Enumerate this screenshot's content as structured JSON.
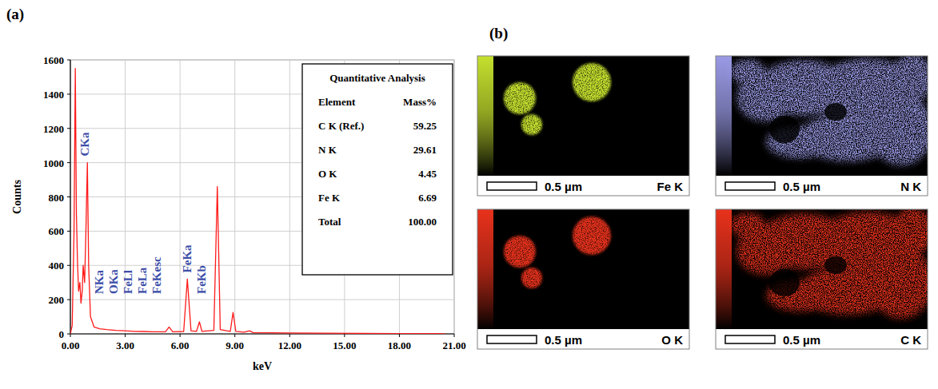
{
  "panel_labels": [
    "(a)",
    "(b)"
  ],
  "chart_data": {
    "type": "line",
    "x_label": "keV",
    "y_label": "Counts",
    "x": [
      0,
      0.1,
      0.2,
      0.27,
      0.33,
      0.39,
      0.45,
      0.52,
      0.58,
      0.65,
      0.7,
      0.78,
      0.85,
      0.93,
      1.0,
      1.1,
      1.3,
      1.6,
      2.0,
      2.5,
      3.0,
      3.5,
      4.0,
      4.5,
      5.2,
      5.4,
      5.6,
      6.2,
      6.4,
      6.6,
      6.9,
      7.06,
      7.2,
      7.85,
      8.04,
      8.2,
      8.75,
      8.9,
      9.05,
      9.5,
      9.8,
      10.0,
      11.0,
      12.0,
      14.0,
      16.0,
      18.0,
      20.0,
      20.5
    ],
    "values": [
      0,
      50,
      600,
      1550,
      700,
      420,
      250,
      300,
      180,
      250,
      400,
      300,
      600,
      1000,
      400,
      100,
      40,
      30,
      25,
      20,
      18,
      15,
      14,
      12,
      12,
      40,
      12,
      14,
      320,
      18,
      15,
      70,
      15,
      20,
      860,
      25,
      15,
      125,
      15,
      10,
      18,
      8,
      6,
      5,
      4,
      3,
      2,
      2,
      1
    ],
    "color": "#ff1a1a",
    "xlim": [
      0,
      21
    ],
    "xticks": [
      {
        "value": 0,
        "label": "0.00"
      },
      {
        "value": 3,
        "label": "3.00"
      },
      {
        "value": 6,
        "label": "6.00"
      },
      {
        "value": 9,
        "label": "9.00"
      },
      {
        "value": 12,
        "label": "12.00"
      },
      {
        "value": 15,
        "label": "15.00"
      },
      {
        "value": 18,
        "label": "18.00"
      },
      {
        "value": 21,
        "label": "21.00"
      }
    ],
    "ylim": [
      0,
      1600
    ],
    "yticks": [
      0,
      200,
      400,
      600,
      800,
      1000,
      1200,
      1400,
      1600
    ],
    "grid": true,
    "annotations": [
      {
        "text": "CKa",
        "x": 0.28
      },
      {
        "text": "NKa",
        "x": 0.39
      },
      {
        "text": "OKa",
        "x": 0.52
      },
      {
        "text": "FeLl",
        "x": 0.62
      },
      {
        "text": "FeLa",
        "x": 0.7
      },
      {
        "text": "FeKesc",
        "x": 4.6
      },
      {
        "text": "FeKa",
        "x": 6.4
      },
      {
        "text": "FeKb",
        "x": 7.06
      }
    ]
  },
  "table": {
    "title": "Quantitative Analysis",
    "header": [
      "Element",
      "Mass%"
    ],
    "rows": [
      [
        "C K (Ref.)",
        "59.25"
      ],
      [
        "N K",
        "29.61"
      ],
      [
        "O K",
        "4.45"
      ],
      [
        "Fe K",
        "6.69"
      ],
      [
        "Total",
        "100.00"
      ]
    ]
  },
  "maps": [
    {
      "element": "Fe K",
      "scale_bar": "0.5 µm",
      "color": "#c6e02e"
    },
    {
      "element": "N K",
      "scale_bar": "0.5 µm",
      "color": "#9a9ae6"
    },
    {
      "element": "O K",
      "scale_bar": "0.5 µm",
      "color": "#e8321c"
    },
    {
      "element": "C K",
      "scale_bar": "0.5 µm",
      "color": "#e8321c"
    }
  ]
}
